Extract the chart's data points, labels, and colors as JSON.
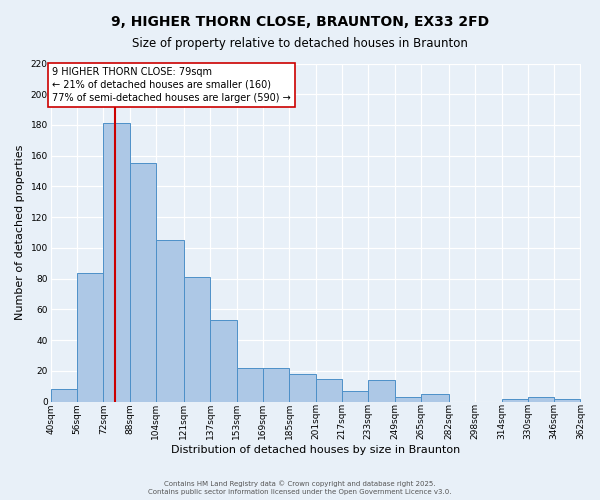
{
  "title": "9, HIGHER THORN CLOSE, BRAUNTON, EX33 2FD",
  "subtitle": "Size of property relative to detached houses in Braunton",
  "xlabel": "Distribution of detached houses by size in Braunton",
  "ylabel": "Number of detached properties",
  "bin_edges": [
    40,
    56,
    72,
    88,
    104,
    121,
    137,
    153,
    169,
    185,
    201,
    217,
    233,
    249,
    265,
    282,
    298,
    314,
    330,
    346,
    362
  ],
  "bar_heights": [
    8,
    84,
    181,
    155,
    105,
    81,
    53,
    22,
    22,
    18,
    15,
    7,
    14,
    3,
    5,
    0,
    0,
    2,
    3,
    2
  ],
  "bar_color": "#adc8e6",
  "bar_edge_color": "#4d90c8",
  "property_size": 79,
  "red_line_color": "#cc0000",
  "annotation_line1": "9 HIGHER THORN CLOSE: 79sqm",
  "annotation_line2": "← 21% of detached houses are smaller (160)",
  "annotation_line3": "77% of semi-detached houses are larger (590) →",
  "annotation_box_color": "#ffffff",
  "annotation_box_edge": "#cc0000",
  "ylim": [
    0,
    220
  ],
  "yticks": [
    0,
    20,
    40,
    60,
    80,
    100,
    120,
    140,
    160,
    180,
    200,
    220
  ],
  "background_color": "#e8f0f8",
  "grid_color": "#ffffff",
  "footer_line1": "Contains HM Land Registry data © Crown copyright and database right 2025.",
  "footer_line2": "Contains public sector information licensed under the Open Government Licence v3.0.",
  "title_fontsize": 10,
  "subtitle_fontsize": 8.5,
  "xlabel_fontsize": 8,
  "ylabel_fontsize": 8,
  "annotation_fontsize": 7,
  "tick_fontsize": 6.5,
  "footer_fontsize": 5.0
}
